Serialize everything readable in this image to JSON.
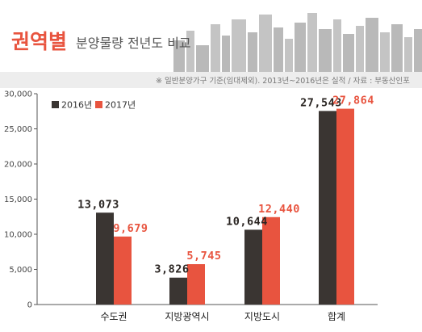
{
  "header": {
    "title_main": "권역별",
    "title_sub": "분양물량 전년도 비교",
    "note": "※ 일반분양가구 기준(임대제외). 2013년~2016년은 실적 / 자료 : 부동산인포"
  },
  "colors": {
    "accent": "#e8543f",
    "series_2016": "#3a3532",
    "series_2017": "#e8543f",
    "note_band": "#ededed",
    "skyline": "#b9b9b9"
  },
  "chart_data": {
    "type": "bar",
    "title": "",
    "xlabel": "",
    "ylabel": "",
    "categories": [
      "수도권",
      "지방광역시",
      "지방도시",
      "합계"
    ],
    "series": [
      {
        "name": "2016년",
        "values": [
          13073,
          3826,
          10644,
          27543
        ],
        "labels": [
          "13,073",
          "3,826",
          "10,644",
          "27,543"
        ]
      },
      {
        "name": "2017년",
        "values": [
          9679,
          5745,
          12440,
          27864
        ],
        "labels": [
          "9,679",
          "5,745",
          "12,440",
          "27,864"
        ]
      }
    ],
    "ylim": [
      0,
      30000
    ],
    "yticks": [
      0,
      5000,
      10000,
      15000,
      20000,
      25000,
      30000
    ],
    "ytick_labels": [
      "0",
      "5,000",
      "10,000",
      "15,000",
      "20,000",
      "25,000",
      "30,000"
    ],
    "grid": false,
    "legend": "top-left"
  }
}
